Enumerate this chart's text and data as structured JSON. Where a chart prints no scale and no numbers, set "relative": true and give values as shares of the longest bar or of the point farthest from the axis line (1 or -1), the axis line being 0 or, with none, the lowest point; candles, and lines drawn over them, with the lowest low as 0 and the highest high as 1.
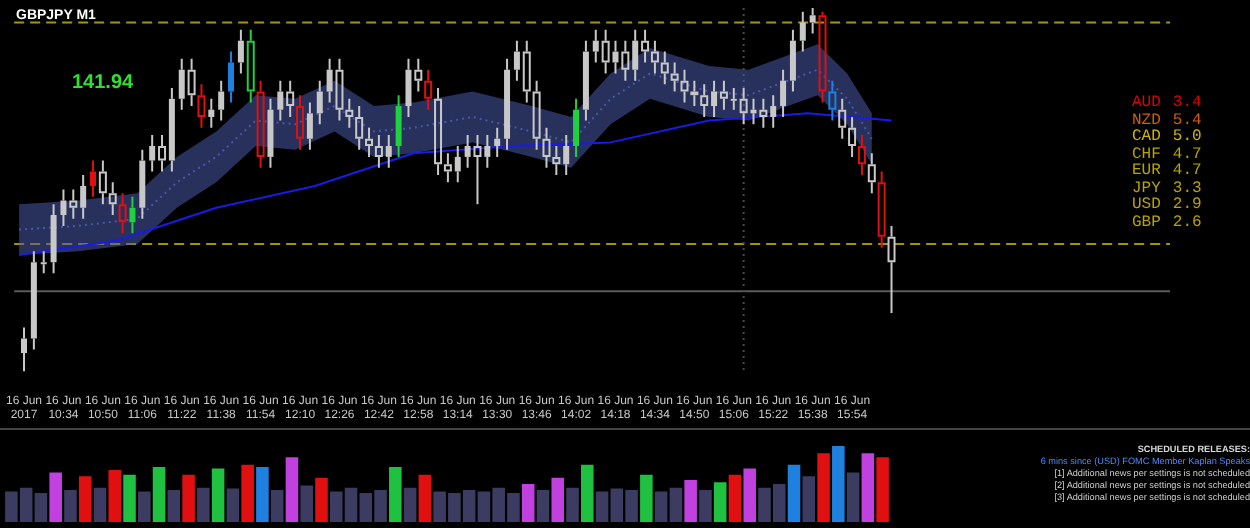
{
  "chart_data": [
    {
      "type": "candlestick",
      "title": "GBPJPY M1",
      "annotations": [
        "141.94"
      ],
      "relative": true,
      "grid": false,
      "xlim": [
        "2017-06-16T10:14",
        "2017-06-16T18:03"
      ],
      "xticks": [
        {
          "value": "2017-06-16T10:18",
          "label": "16 Jun 2017"
        },
        {
          "value": "2017-06-16T10:34",
          "label": "16 Jun 10:34"
        },
        {
          "value": "2017-06-16T10:50",
          "label": "16 Jun 10:50"
        },
        {
          "value": "2017-06-16T11:06",
          "label": "16 Jun 11:06"
        },
        {
          "value": "2017-06-16T11:22",
          "label": "16 Jun 11:22"
        },
        {
          "value": "2017-06-16T11:38",
          "label": "16 Jun 11:38"
        },
        {
          "value": "2017-06-16T11:54",
          "label": "16 Jun 11:54"
        },
        {
          "value": "2017-06-16T12:10",
          "label": "16 Jun 12:10"
        },
        {
          "value": "2017-06-16T12:26",
          "label": "16 Jun 12:26"
        },
        {
          "value": "2017-06-16T12:42",
          "label": "16 Jun 12:42"
        },
        {
          "value": "2017-06-16T12:58",
          "label": "16 Jun 12:58"
        },
        {
          "value": "2017-06-16T13:14",
          "label": "16 Jun 13:14"
        },
        {
          "value": "2017-06-16T13:30",
          "label": "16 Jun 13:30"
        },
        {
          "value": "2017-06-16T13:46",
          "label": "16 Jun 13:46"
        },
        {
          "value": "2017-06-16T14:02",
          "label": "16 Jun 14:02"
        },
        {
          "value": "2017-06-16T14:18",
          "label": "16 Jun 14:18"
        },
        {
          "value": "2017-06-16T14:34",
          "label": "16 Jun 14:34"
        },
        {
          "value": "2017-06-16T14:50",
          "label": "16 Jun 14:50"
        },
        {
          "value": "2017-06-16T15:06",
          "label": "16 Jun 15:06"
        },
        {
          "value": "2017-06-16T15:22",
          "label": "16 Jun 15:22"
        },
        {
          "value": "2017-06-16T15:38",
          "label": "16 Jun 15:38"
        },
        {
          "value": "2017-06-16T15:54",
          "label": "16 Jun 15:54"
        }
      ],
      "x": [
        "2017-06-16T10:18",
        "2017-06-16T10:22",
        "2017-06-16T10:26",
        "2017-06-16T10:30",
        "2017-06-16T10:34",
        "2017-06-16T10:38",
        "2017-06-16T10:42",
        "2017-06-16T10:46",
        "2017-06-16T10:50",
        "2017-06-16T10:54",
        "2017-06-16T10:58",
        "2017-06-16T11:02",
        "2017-06-16T11:06",
        "2017-06-16T11:10",
        "2017-06-16T11:14",
        "2017-06-16T11:18",
        "2017-06-16T11:22",
        "2017-06-16T11:26",
        "2017-06-16T11:30",
        "2017-06-16T11:34",
        "2017-06-16T11:38",
        "2017-06-16T11:42",
        "2017-06-16T11:46",
        "2017-06-16T11:50",
        "2017-06-16T11:54",
        "2017-06-16T11:58",
        "2017-06-16T12:02",
        "2017-06-16T12:06",
        "2017-06-16T12:10",
        "2017-06-16T12:14",
        "2017-06-16T12:18",
        "2017-06-16T12:22",
        "2017-06-16T12:26",
        "2017-06-16T12:30",
        "2017-06-16T12:34",
        "2017-06-16T12:38",
        "2017-06-16T12:42",
        "2017-06-16T12:46",
        "2017-06-16T12:50",
        "2017-06-16T12:54",
        "2017-06-16T12:58",
        "2017-06-16T13:02",
        "2017-06-16T13:06",
        "2017-06-16T13:10",
        "2017-06-16T13:14",
        "2017-06-16T13:18",
        "2017-06-16T13:22",
        "2017-06-16T13:26",
        "2017-06-16T13:30",
        "2017-06-16T13:34",
        "2017-06-16T13:38",
        "2017-06-16T13:42",
        "2017-06-16T13:46",
        "2017-06-16T13:50",
        "2017-06-16T13:54",
        "2017-06-16T13:58",
        "2017-06-16T14:02",
        "2017-06-16T14:06",
        "2017-06-16T14:10",
        "2017-06-16T14:14",
        "2017-06-16T14:18",
        "2017-06-16T14:22",
        "2017-06-16T14:26",
        "2017-06-16T14:30",
        "2017-06-16T14:34",
        "2017-06-16T14:38",
        "2017-06-16T14:42",
        "2017-06-16T14:46",
        "2017-06-16T14:50",
        "2017-06-16T14:54",
        "2017-06-16T14:58",
        "2017-06-16T15:02",
        "2017-06-16T15:06",
        "2017-06-16T15:10",
        "2017-06-16T15:14",
        "2017-06-16T15:18",
        "2017-06-16T15:22",
        "2017-06-16T15:26",
        "2017-06-16T15:30",
        "2017-06-16T15:34",
        "2017-06-16T15:38",
        "2017-06-16T15:42",
        "2017-06-16T15:46",
        "2017-06-16T15:50",
        "2017-06-16T15:54",
        "2017-06-16T15:58",
        "2017-06-16T16:02",
        "2017-06-16T16:06",
        "2017-06-16T16:10"
      ],
      "ohlc": [
        [
          0.05,
          0.12,
          0.0,
          0.09
        ],
        [
          0.09,
          0.33,
          0.06,
          0.3
        ],
        [
          0.3,
          0.33,
          0.27,
          0.3
        ],
        [
          0.3,
          0.46,
          0.27,
          0.43
        ],
        [
          0.43,
          0.5,
          0.4,
          0.47
        ],
        [
          0.47,
          0.5,
          0.42,
          0.45
        ],
        [
          0.45,
          0.54,
          0.42,
          0.51
        ],
        [
          0.51,
          0.58,
          0.48,
          0.55
        ],
        [
          0.55,
          0.58,
          0.46,
          0.49
        ],
        [
          0.49,
          0.52,
          0.43,
          0.46
        ],
        [
          0.46,
          0.49,
          0.38,
          0.41
        ],
        [
          0.41,
          0.48,
          0.38,
          0.45
        ],
        [
          0.45,
          0.61,
          0.42,
          0.58
        ],
        [
          0.58,
          0.65,
          0.55,
          0.62
        ],
        [
          0.62,
          0.65,
          0.55,
          0.58
        ],
        [
          0.58,
          0.78,
          0.55,
          0.75
        ],
        [
          0.75,
          0.86,
          0.72,
          0.83
        ],
        [
          0.83,
          0.86,
          0.73,
          0.76
        ],
        [
          0.76,
          0.79,
          0.67,
          0.7
        ],
        [
          0.7,
          0.75,
          0.67,
          0.72
        ],
        [
          0.72,
          0.8,
          0.69,
          0.77
        ],
        [
          0.77,
          0.88,
          0.74,
          0.85
        ],
        [
          0.85,
          0.94,
          0.82,
          0.91
        ],
        [
          0.91,
          0.94,
          0.74,
          0.77
        ],
        [
          0.77,
          0.8,
          0.56,
          0.59
        ],
        [
          0.59,
          0.75,
          0.56,
          0.72
        ],
        [
          0.72,
          0.8,
          0.69,
          0.77
        ],
        [
          0.77,
          0.8,
          0.7,
          0.73
        ],
        [
          0.73,
          0.76,
          0.61,
          0.64
        ],
        [
          0.64,
          0.74,
          0.61,
          0.71
        ],
        [
          0.71,
          0.8,
          0.68,
          0.77
        ],
        [
          0.77,
          0.86,
          0.74,
          0.83
        ],
        [
          0.83,
          0.86,
          0.69,
          0.72
        ],
        [
          0.72,
          0.75,
          0.67,
          0.7
        ],
        [
          0.7,
          0.73,
          0.61,
          0.64
        ],
        [
          0.64,
          0.67,
          0.59,
          0.62
        ],
        [
          0.62,
          0.65,
          0.56,
          0.59
        ],
        [
          0.59,
          0.65,
          0.56,
          0.62
        ],
        [
          0.62,
          0.76,
          0.59,
          0.73
        ],
        [
          0.73,
          0.86,
          0.7,
          0.83
        ],
        [
          0.83,
          0.86,
          0.77,
          0.8
        ],
        [
          0.8,
          0.83,
          0.72,
          0.75
        ],
        [
          0.75,
          0.78,
          0.54,
          0.57
        ],
        [
          0.57,
          0.6,
          0.52,
          0.55
        ],
        [
          0.55,
          0.62,
          0.52,
          0.59
        ],
        [
          0.59,
          0.65,
          0.56,
          0.62
        ],
        [
          0.62,
          0.65,
          0.46,
          0.59
        ],
        [
          0.59,
          0.65,
          0.56,
          0.62
        ],
        [
          0.62,
          0.67,
          0.59,
          0.64
        ],
        [
          0.64,
          0.86,
          0.61,
          0.83
        ],
        [
          0.83,
          0.91,
          0.8,
          0.88
        ],
        [
          0.88,
          0.91,
          0.74,
          0.77
        ],
        [
          0.77,
          0.8,
          0.61,
          0.64
        ],
        [
          0.64,
          0.67,
          0.56,
          0.59
        ],
        [
          0.59,
          0.62,
          0.54,
          0.57
        ],
        [
          0.57,
          0.65,
          0.54,
          0.62
        ],
        [
          0.62,
          0.75,
          0.59,
          0.72
        ],
        [
          0.72,
          0.91,
          0.69,
          0.88
        ],
        [
          0.88,
          0.94,
          0.85,
          0.91
        ],
        [
          0.91,
          0.94,
          0.82,
          0.85
        ],
        [
          0.85,
          0.91,
          0.82,
          0.88
        ],
        [
          0.88,
          0.91,
          0.8,
          0.83
        ],
        [
          0.83,
          0.94,
          0.8,
          0.91
        ],
        [
          0.91,
          0.94,
          0.85,
          0.88
        ],
        [
          0.88,
          0.91,
          0.82,
          0.85
        ],
        [
          0.85,
          0.88,
          0.79,
          0.82
        ],
        [
          0.82,
          0.85,
          0.77,
          0.8
        ],
        [
          0.8,
          0.83,
          0.74,
          0.77
        ],
        [
          0.77,
          0.8,
          0.73,
          0.76
        ],
        [
          0.76,
          0.79,
          0.7,
          0.73
        ],
        [
          0.73,
          0.8,
          0.7,
          0.77
        ],
        [
          0.77,
          0.8,
          0.72,
          0.75
        ],
        [
          0.75,
          0.78,
          0.72,
          0.75
        ],
        [
          0.75,
          0.78,
          0.68,
          0.71
        ],
        [
          0.71,
          0.75,
          0.68,
          0.72
        ],
        [
          0.72,
          0.75,
          0.67,
          0.7
        ],
        [
          0.7,
          0.76,
          0.67,
          0.73
        ],
        [
          0.73,
          0.83,
          0.7,
          0.8
        ],
        [
          0.8,
          0.94,
          0.77,
          0.91
        ],
        [
          0.91,
          0.99,
          0.88,
          0.96
        ],
        [
          0.96,
          1.0,
          0.93,
          0.98
        ],
        [
          0.98,
          0.99,
          0.74,
          0.77
        ],
        [
          0.77,
          0.8,
          0.69,
          0.72
        ],
        [
          0.72,
          0.75,
          0.64,
          0.67
        ],
        [
          0.67,
          0.7,
          0.59,
          0.62
        ],
        [
          0.62,
          0.65,
          0.54,
          0.57
        ],
        [
          0.57,
          0.6,
          0.49,
          0.52
        ],
        [
          0.52,
          0.55,
          0.34,
          0.37
        ],
        [
          0.37,
          0.4,
          0.16,
          0.3
        ]
      ],
      "colors": [
        "#c8c8c8",
        "#c8c8c8",
        "#c8c8c8",
        "#c8c8c8",
        "#c8c8c8",
        "#c8c8c8",
        "#c8c8c8",
        "#e01010",
        "#c8c8c8",
        "#c8c8c8",
        "#e01010",
        "#20d040",
        "#c8c8c8",
        "#c8c8c8",
        "#c8c8c8",
        "#c8c8c8",
        "#c8c8c8",
        "#c8c8c8",
        "#e01010",
        "#c8c8c8",
        "#c8c8c8",
        "#2080e0",
        "#c8c8c8",
        "#20d040",
        "#e01010",
        "#c8c8c8",
        "#c8c8c8",
        "#c8c8c8",
        "#e01010",
        "#c8c8c8",
        "#c8c8c8",
        "#c8c8c8",
        "#c8c8c8",
        "#c8c8c8",
        "#c8c8c8",
        "#c8c8c8",
        "#c8c8c8",
        "#c8c8c8",
        "#20d040",
        "#c8c8c8",
        "#c8c8c8",
        "#e01010",
        "#c8c8c8",
        "#c8c8c8",
        "#c8c8c8",
        "#c8c8c8",
        "#c8c8c8",
        "#c8c8c8",
        "#c8c8c8",
        "#c8c8c8",
        "#c8c8c8",
        "#c8c8c8",
        "#c8c8c8",
        "#c8c8c8",
        "#c8c8c8",
        "#c8c8c8",
        "#20d040",
        "#c8c8c8",
        "#c8c8c8",
        "#c8c8c8",
        "#c8c8c8",
        "#c8c8c8",
        "#c8c8c8",
        "#c8c8c8",
        "#c8c8c8",
        "#c8c8c8",
        "#c8c8c8",
        "#c8c8c8",
        "#c8c8c8",
        "#c8c8c8",
        "#c8c8c8",
        "#c8c8c8",
        "#c8c8c8",
        "#c8c8c8",
        "#c8c8c8",
        "#c8c8c8",
        "#c8c8c8",
        "#c8c8c8",
        "#c8c8c8",
        "#c8c8c8",
        "#c8c8c8",
        "#e01010",
        "#2080e0",
        "#c8c8c8",
        "#c8c8c8",
        "#e01010",
        "#c8c8c8",
        "#e01010",
        "#c8c8c8"
      ],
      "series": [
        {
          "type": "line",
          "color": "#1a1ae8",
          "x": [
            "2017-06-16T10:16",
            "2017-06-16T10:56",
            "2017-06-16T11:36",
            "2017-06-16T12:16",
            "2017-06-16T12:56",
            "2017-06-16T13:36",
            "2017-06-16T14:16",
            "2017-06-16T14:56",
            "2017-06-16T15:36",
            "2017-06-16T16:10"
          ],
          "values": [
            0.32,
            0.36,
            0.45,
            0.51,
            0.6,
            0.62,
            0.63,
            0.69,
            0.71,
            0.69
          ]
        },
        {
          "type": "line",
          "color": "#4858a8",
          "line_style": "dotted",
          "x": [
            "2017-06-16T10:16",
            "2017-06-16T10:40",
            "2017-06-16T11:04",
            "2017-06-16T11:20",
            "2017-06-16T11:36",
            "2017-06-16T11:52",
            "2017-06-16T12:08",
            "2017-06-16T12:24",
            "2017-06-16T12:40",
            "2017-06-16T12:56",
            "2017-06-16T13:20",
            "2017-06-16T13:44",
            "2017-06-16T14:00",
            "2017-06-16T14:16",
            "2017-06-16T14:32",
            "2017-06-16T14:56",
            "2017-06-16T15:12",
            "2017-06-16T15:28",
            "2017-06-16T15:40",
            "2017-06-16T15:52",
            "2017-06-16T16:02"
          ],
          "values": [
            0.39,
            0.4,
            0.42,
            0.52,
            0.59,
            0.69,
            0.68,
            0.73,
            0.66,
            0.67,
            0.7,
            0.66,
            0.63,
            0.75,
            0.82,
            0.77,
            0.76,
            0.8,
            0.83,
            0.75,
            0.64
          ],
          "lower": [
            0.32,
            0.33,
            0.35,
            0.45,
            0.52,
            0.62,
            0.61,
            0.66,
            0.59,
            0.6,
            0.63,
            0.59,
            0.56,
            0.68,
            0.75,
            0.7,
            0.69,
            0.73,
            0.76,
            0.68,
            0.57
          ],
          "upper": [
            0.46,
            0.47,
            0.49,
            0.59,
            0.66,
            0.76,
            0.75,
            0.8,
            0.73,
            0.74,
            0.77,
            0.73,
            0.7,
            0.82,
            0.89,
            0.84,
            0.83,
            0.87,
            0.9,
            0.82,
            0.71
          ]
        }
      ],
      "ref_lines": [
        {
          "axis": "y",
          "value": 0.96,
          "color": "#a89400",
          "line_style": "dashed"
        },
        {
          "axis": "y",
          "value": 0.35,
          "color": "#a89400",
          "line_style": "dashed"
        },
        {
          "axis": "y",
          "value": 0.22,
          "color": "#5a5a5a",
          "line_style": "solid"
        },
        {
          "axis": "x",
          "value": "2017-06-16T15:10",
          "color": "#4a4a4a",
          "line_style": "dotted"
        }
      ]
    },
    {
      "type": "bar",
      "relative": true,
      "categories": [
        null,
        null,
        null,
        null,
        null,
        null,
        null,
        null,
        null,
        null,
        null,
        null,
        null,
        null,
        null,
        null,
        null,
        null,
        null,
        null,
        null,
        null,
        null,
        null,
        null,
        null,
        null,
        null,
        null,
        null,
        null,
        null,
        null,
        null,
        null,
        null,
        null,
        null,
        null,
        null,
        null,
        null,
        null,
        null,
        null,
        null,
        null,
        null,
        null,
        null,
        null,
        null,
        null,
        null,
        null,
        null,
        null,
        null,
        null,
        null
      ],
      "values": [
        0.4,
        0.45,
        0.38,
        0.65,
        0.42,
        0.6,
        0.45,
        0.68,
        0.62,
        0.4,
        0.72,
        0.42,
        0.62,
        0.45,
        0.7,
        0.44,
        0.75,
        0.72,
        0.42,
        0.85,
        0.48,
        0.58,
        0.4,
        0.45,
        0.38,
        0.42,
        0.72,
        0.45,
        0.62,
        0.4,
        0.38,
        0.42,
        0.4,
        0.45,
        0.38,
        0.5,
        0.42,
        0.58,
        0.45,
        0.75,
        0.4,
        0.44,
        0.42,
        0.62,
        0.4,
        0.45,
        0.55,
        0.42,
        0.52,
        0.62,
        0.7,
        0.45,
        0.5,
        0.75,
        0.6,
        0.9,
        1,
        0.65,
        0.9,
        0.85
      ],
      "colors": [
        "#3c3c62",
        "#3c3c62",
        "#3c3c62",
        "#c040e0",
        "#3c3c62",
        "#e01010",
        "#3c3c62",
        "#e01010",
        "#20c040",
        "#3c3c62",
        "#20c040",
        "#3c3c62",
        "#e01010",
        "#3c3c62",
        "#20c040",
        "#3c3c62",
        "#e01010",
        "#2080e0",
        "#3c3c62",
        "#c040e0",
        "#3c3c62",
        "#e01010",
        "#3c3c62",
        "#3c3c62",
        "#3c3c62",
        "#3c3c62",
        "#20c040",
        "#3c3c62",
        "#e01010",
        "#3c3c62",
        "#3c3c62",
        "#3c3c62",
        "#3c3c62",
        "#3c3c62",
        "#3c3c62",
        "#c040e0",
        "#3c3c62",
        "#c040e0",
        "#3c3c62",
        "#20c040",
        "#3c3c62",
        "#3c3c62",
        "#3c3c62",
        "#20c040",
        "#3c3c62",
        "#3c3c62",
        "#c040e0",
        "#3c3c62",
        "#20c040",
        "#e01010",
        "#c040e0",
        "#3c3c62",
        "#3c3c62",
        "#2080e0",
        "#3c3c62",
        "#e01010",
        "#2080e0",
        "#3c3c62",
        "#c040e0",
        "#e01010"
      ]
    },
    {
      "type": "other",
      "categories": [
        "AUD",
        "NZD",
        "CAD",
        "CHF",
        "EUR",
        "JPY",
        "USD",
        "GBP"
      ],
      "values": [
        3.4,
        5.4,
        5.0,
        4.7,
        4.7,
        3.3,
        2.9,
        2.6
      ],
      "value_labels": [
        "3.4",
        "5.4",
        "5.0",
        "4.7",
        "4.7",
        "3.3",
        "2.9",
        "2.6"
      ],
      "colors": [
        "#e00000",
        "#d06000",
        "#d0b800",
        "#b8a400",
        "#b8a400",
        "#b8a400",
        "#b8a400",
        "#b8a400"
      ]
    },
    {
      "type": "other",
      "title": "SCHEDULED RELEASES:",
      "annotations": [
        "6 mins since (USD) FOMC Member Kaplan Speaks",
        "[1] Additional news per settings is not scheduled",
        "[2] Additional news per settings is not scheduled",
        "[3] Additional news per settings is not scheduled"
      ]
    }
  ]
}
